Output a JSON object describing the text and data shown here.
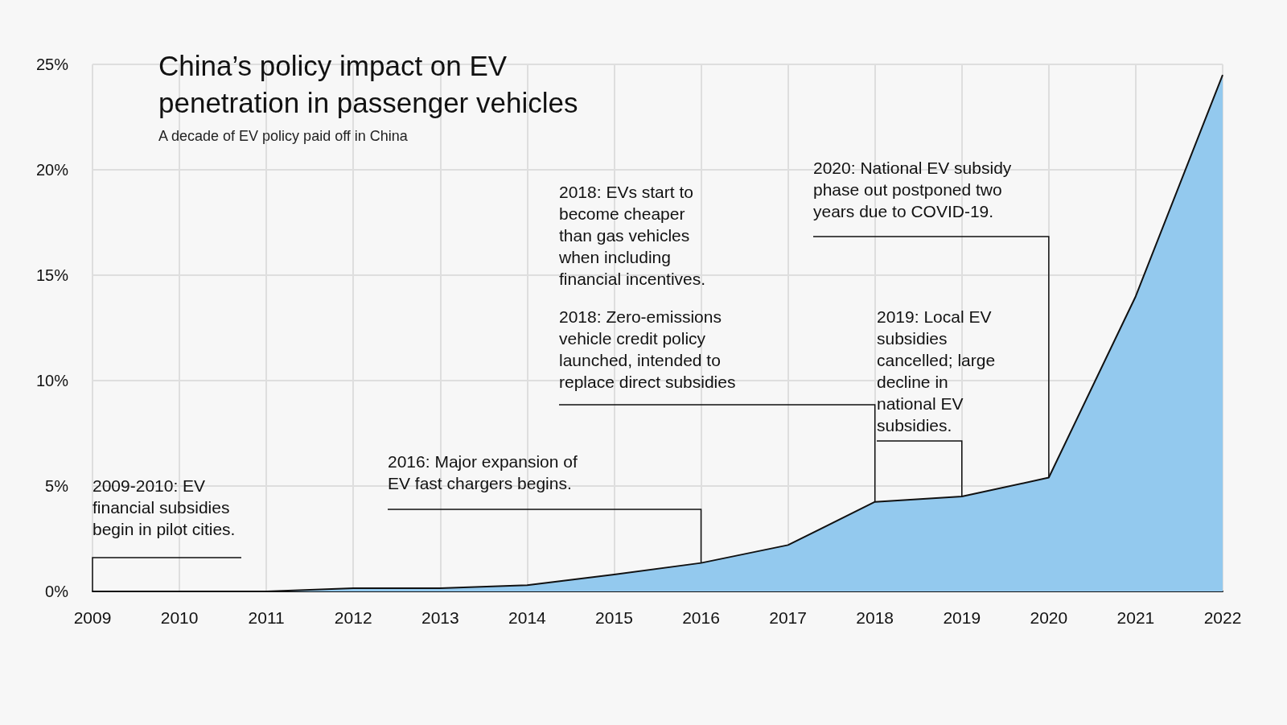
{
  "chart_data": {
    "type": "area",
    "title": "China’s policy impact on EV penetration in passenger vehicles",
    "subtitle": "A decade of EV policy paid off in China",
    "categories": [
      "2009",
      "2010",
      "2011",
      "2012",
      "2013",
      "2014",
      "2015",
      "2016",
      "2017",
      "2018",
      "2019",
      "2020",
      "2021",
      "2022"
    ],
    "series": [
      {
        "color": "#93c9ee",
        "values": [
          0,
          0,
          0,
          0.15,
          0.15,
          0.3,
          0.8,
          1.35,
          2.2,
          4.25,
          4.5,
          5.4,
          14,
          24.5
        ]
      }
    ],
    "ylim": [
      0,
      25
    ],
    "yticks": [
      {
        "value": 0,
        "label": "0%"
      },
      {
        "value": 5,
        "label": "5%"
      },
      {
        "value": 10,
        "label": "10%"
      },
      {
        "value": 15,
        "label": "15%"
      },
      {
        "value": 20,
        "label": "20%"
      },
      {
        "value": 25,
        "label": "25%"
      }
    ],
    "grid": true,
    "marker": "none",
    "annotations": [
      {
        "text": "2009-2010: EV financial subsidies begin in pilot cities.",
        "x": "2009",
        "y": 0
      },
      {
        "text": "2016: Major expansion of EV fast chargers begins.",
        "x": "2016",
        "y": 1.35
      },
      "2018: EVs start to become cheaper than gas vehicles when including financial incentives.",
      {
        "text": "2018: Zero-emissions vehicle credit policy launched, intended to replace direct subsidies",
        "x": "2018",
        "y": 4.25
      },
      {
        "text": "2019: Local EV subsidies cancelled; large decline in national EV subsidies.",
        "x": "2019",
        "y": 4.5
      },
      {
        "text": "2020: National EV subsidy phase out postponed two years due to COVID-19.",
        "x": "2020",
        "y": 5.4
      }
    ]
  }
}
